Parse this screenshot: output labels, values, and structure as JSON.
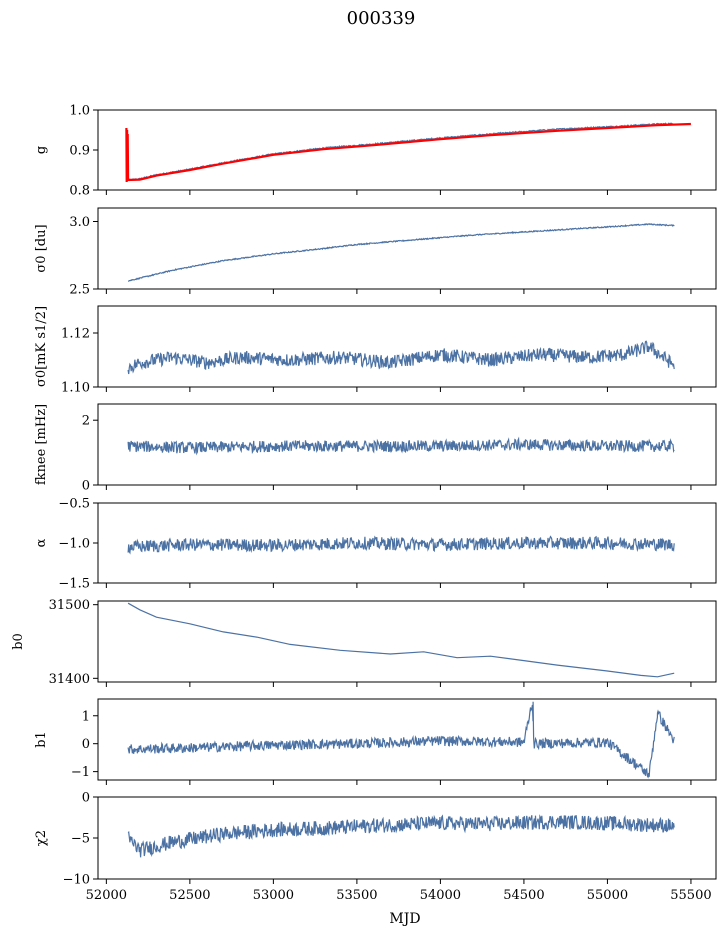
{
  "figure": {
    "title": "000339",
    "xlabel": "MJD",
    "colors": {
      "series": "#4c72a4",
      "overlay": "#ff0000",
      "axes": "#000000"
    }
  },
  "chart_data": [
    {
      "type": "line",
      "ylabel": "g",
      "xlim": [
        51950,
        55650
      ],
      "ylim": [
        0.8,
        1.0
      ],
      "yticks": [
        0.8,
        0.9,
        1.0
      ],
      "ytick_labels": [
        "0.8",
        "0.9",
        "1.0"
      ],
      "series": [
        {
          "color": "#4c72a4",
          "x": [
            52130,
            52200,
            52300,
            52500,
            52700,
            53000,
            53300,
            53600,
            54000,
            54300,
            54700,
            55000,
            55300,
            55400
          ],
          "y": [
            0.825,
            0.828,
            0.838,
            0.852,
            0.868,
            0.89,
            0.905,
            0.915,
            0.93,
            0.94,
            0.952,
            0.958,
            0.965,
            0.966
          ]
        },
        {
          "color": "#ff0000",
          "x": [
            52120,
            52122,
            52124,
            52126,
            52128,
            52130,
            52200,
            52300,
            52500,
            52700,
            53000,
            53300,
            53600,
            54000,
            54300,
            54700,
            55000,
            55300,
            55500
          ],
          "y": [
            0.955,
            0.82,
            0.95,
            0.83,
            0.94,
            0.825,
            0.826,
            0.836,
            0.85,
            0.866,
            0.888,
            0.902,
            0.912,
            0.927,
            0.937,
            0.948,
            0.955,
            0.962,
            0.965
          ]
        }
      ]
    },
    {
      "type": "line",
      "ylabel": "σ0 [du]",
      "xlim": [
        51950,
        55650
      ],
      "ylim": [
        2.5,
        3.1
      ],
      "yticks": [
        2.5,
        3.0
      ],
      "ytick_labels": [
        "2.5",
        "3.0"
      ],
      "series": [
        {
          "color": "#4c72a4",
          "x": [
            52130,
            52200,
            52400,
            52700,
            53000,
            53300,
            53500,
            53800,
            54200,
            54600,
            55000,
            55250,
            55400
          ],
          "y": [
            2.56,
            2.58,
            2.64,
            2.71,
            2.76,
            2.8,
            2.83,
            2.86,
            2.9,
            2.93,
            2.96,
            2.98,
            2.97
          ]
        }
      ]
    },
    {
      "type": "line",
      "ylabel": "σ0[mK s1/2]",
      "xlim": [
        51950,
        55650
      ],
      "ylim": [
        1.1,
        1.13
      ],
      "yticks": [
        1.1,
        1.12
      ],
      "ytick_labels": [
        "1.10",
        "1.12"
      ],
      "series": [
        {
          "color": "#4c72a4",
          "x": [
            52130,
            52200,
            52400,
            52600,
            52800,
            53100,
            53400,
            53700,
            54000,
            54300,
            54600,
            54900,
            55100,
            55250,
            55400
          ],
          "y": [
            1.107,
            1.109,
            1.111,
            1.109,
            1.111,
            1.11,
            1.111,
            1.109,
            1.112,
            1.11,
            1.112,
            1.111,
            1.112,
            1.115,
            1.108
          ]
        }
      ]
    },
    {
      "type": "line",
      "ylabel": "fknee [mHz]",
      "xlim": [
        51950,
        55650
      ],
      "ylim": [
        0,
        2.5
      ],
      "yticks": [
        0,
        2
      ],
      "ytick_labels": [
        "0",
        "2"
      ],
      "series": [
        {
          "color": "#4c72a4",
          "x": [
            52130,
            52500,
            53000,
            53500,
            54000,
            54500,
            55000,
            55400
          ],
          "y": [
            1.2,
            1.15,
            1.2,
            1.2,
            1.2,
            1.25,
            1.2,
            1.2
          ]
        }
      ]
    },
    {
      "type": "line",
      "ylabel": "α",
      "xlim": [
        51950,
        55650
      ],
      "ylim": [
        -1.5,
        -0.5
      ],
      "yticks": [
        -1.5,
        -1.0,
        -0.5
      ],
      "ytick_labels": [
        "−1.5",
        "−1.0",
        "−0.5"
      ],
      "series": [
        {
          "color": "#4c72a4",
          "x": [
            52130,
            52500,
            53000,
            53500,
            54000,
            54500,
            55000,
            55400
          ],
          "y": [
            -1.05,
            -1.02,
            -1.03,
            -1.0,
            -1.02,
            -1.0,
            -1.0,
            -1.02
          ]
        }
      ]
    },
    {
      "type": "line",
      "ylabel": "b0",
      "xlim": [
        51950,
        55650
      ],
      "ylim": [
        31395,
        31505
      ],
      "yticks": [
        31400,
        31500
      ],
      "ytick_labels": [
        "31400",
        "31500"
      ],
      "series": [
        {
          "color": "#4c72a4",
          "x": [
            52130,
            52200,
            52300,
            52500,
            52700,
            52900,
            53100,
            53400,
            53700,
            53900,
            54100,
            54300,
            54500,
            54700,
            55000,
            55200,
            55300,
            55400
          ],
          "y": [
            31502,
            31493,
            31483,
            31474,
            31463,
            31456,
            31446,
            31438,
            31433,
            31436,
            31428,
            31430,
            31424,
            31418,
            31410,
            31404,
            31402,
            31407
          ]
        }
      ]
    },
    {
      "type": "line",
      "ylabel": "b1",
      "xlim": [
        51950,
        55650
      ],
      "ylim": [
        -1.3,
        1.6
      ],
      "yticks": [
        -1,
        0,
        1
      ],
      "ytick_labels": [
        "−1",
        "0",
        "1"
      ],
      "series": [
        {
          "color": "#4c72a4",
          "x": [
            52130,
            52500,
            53000,
            53500,
            54000,
            54500,
            54550,
            54560,
            55000,
            55250,
            55300,
            55400
          ],
          "y": [
            -0.2,
            -0.15,
            -0.05,
            0.0,
            0.1,
            0.05,
            1.5,
            0.0,
            0.05,
            -1.1,
            1.1,
            0.1
          ]
        }
      ]
    },
    {
      "type": "line",
      "ylabel": "χ2",
      "xlim": [
        51950,
        55650
      ],
      "ylim": [
        -10,
        0
      ],
      "yticks": [
        -10,
        -5,
        0
      ],
      "ytick_labels": [
        "−10",
        "−5",
        "0"
      ],
      "xticks": [
        52000,
        52500,
        53000,
        53500,
        54000,
        54500,
        55000,
        55500
      ],
      "xtick_labels": [
        "52000",
        "52500",
        "53000",
        "53500",
        "54000",
        "54500",
        "55000",
        "55500"
      ],
      "series": [
        {
          "color": "#4c72a4",
          "x": [
            52130,
            52200,
            52400,
            52700,
            53000,
            53300,
            53600,
            54000,
            54300,
            54700,
            55000,
            55400
          ],
          "y": [
            -5.0,
            -6.5,
            -5.5,
            -4.5,
            -4.0,
            -3.8,
            -3.5,
            -3.2,
            -3.3,
            -3.0,
            -3.2,
            -3.5
          ]
        }
      ]
    }
  ]
}
